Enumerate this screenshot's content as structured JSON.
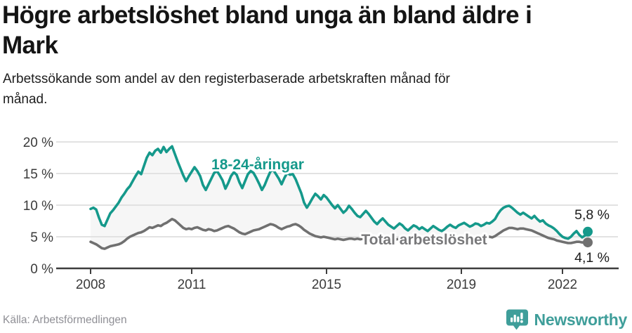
{
  "header": {
    "title_line1": "Högre arbetslöshet bland unga än bland äldre i",
    "title_line2": "Mark",
    "subtitle_line1": "Arbetssökande som andel av den registerbaserade arbetskraften månad för",
    "subtitle_line2": "månad."
  },
  "footer": {
    "source": "Källa: Arbetsförmedlingen",
    "brand": "Newsworthy",
    "brand_color": "#3f9e9a"
  },
  "chart_data": {
    "type": "line",
    "title": "Högre arbetslöshet bland unga än bland äldre i Mark",
    "subtitle": "Arbetssökande som andel av den registerbaserade arbetskraften månad för månad.",
    "source": "Källa: Arbetsförmedlingen",
    "unit": "%",
    "x_start": "2008-01",
    "x_step_months": 1,
    "x_end": "2022-10",
    "ylim": [
      0,
      20
    ],
    "grid": true,
    "legend_position": "inline-labels",
    "band_fill": "rgba(130,130,130,0.07)",
    "y_ticks": [
      {
        "v": 0,
        "label": "0 %"
      },
      {
        "v": 5,
        "label": "5 %"
      },
      {
        "v": 10,
        "label": "10 %"
      },
      {
        "v": 15,
        "label": "15 %"
      },
      {
        "v": 20,
        "label": "20 %"
      }
    ],
    "x_ticks": [
      {
        "year": 2008,
        "label": "2008"
      },
      {
        "year": 2011,
        "label": "2011"
      },
      {
        "year": 2015,
        "label": "2015"
      },
      {
        "year": 2019,
        "label": "2019"
      },
      {
        "year": 2022,
        "label": "2022"
      }
    ],
    "series": [
      {
        "id": "young",
        "name": "18-24-åringar",
        "color": "#15998b",
        "end_label": "5,8 %",
        "end_value": 5.8,
        "values": [
          9.4,
          9.6,
          9.3,
          8.0,
          6.9,
          6.7,
          7.7,
          8.7,
          9.2,
          9.8,
          10.4,
          11.2,
          11.8,
          12.5,
          13.0,
          13.8,
          14.6,
          15.3,
          14.9,
          16.2,
          17.5,
          18.3,
          17.9,
          18.6,
          18.9,
          18.3,
          19.2,
          18.4,
          18.9,
          19.3,
          18.1,
          16.9,
          15.8,
          14.7,
          13.8,
          14.6,
          15.3,
          16.0,
          15.4,
          14.6,
          13.2,
          12.4,
          13.3,
          14.2,
          15.1,
          15.4,
          14.7,
          13.9,
          12.6,
          13.5,
          14.6,
          15.2,
          14.8,
          13.6,
          12.7,
          13.8,
          14.9,
          15.4,
          15.1,
          14.3,
          13.4,
          12.4,
          13.2,
          14.3,
          15.3,
          15.6,
          14.9,
          14.2,
          13.3,
          14.3,
          15.1,
          14.8,
          14.9,
          14.1,
          13.0,
          11.9,
          10.4,
          9.6,
          10.3,
          11.1,
          11.8,
          11.4,
          10.9,
          11.6,
          11.2,
          10.6,
          10.0,
          9.5,
          10.0,
          9.4,
          8.8,
          9.2,
          9.9,
          9.4,
          8.8,
          8.3,
          8.1,
          8.6,
          9.1,
          8.6,
          8.0,
          7.4,
          7.0,
          7.5,
          7.9,
          7.4,
          6.9,
          6.6,
          6.3,
          6.7,
          7.1,
          6.8,
          6.3,
          6.0,
          6.4,
          6.8,
          6.6,
          6.2,
          6.5,
          6.2,
          5.9,
          6.3,
          6.7,
          6.4,
          6.1,
          5.9,
          6.2,
          6.6,
          6.9,
          6.6,
          6.4,
          6.8,
          7.0,
          7.2,
          6.9,
          6.6,
          6.8,
          7.1,
          7.0,
          6.7,
          6.9,
          7.2,
          7.1,
          7.4,
          7.8,
          8.6,
          9.2,
          9.6,
          9.8,
          9.9,
          9.6,
          9.2,
          8.8,
          8.5,
          8.8,
          8.5,
          8.2,
          7.9,
          8.3,
          7.8,
          7.4,
          7.6,
          7.1,
          6.8,
          6.6,
          6.3,
          5.9,
          5.4,
          5.0,
          4.8,
          4.7,
          5.0,
          5.5,
          5.9,
          5.3,
          4.9,
          5.2,
          5.8
        ]
      },
      {
        "id": "total",
        "name": "Total arbetslöshet",
        "color": "#707070",
        "label_color": "#78787a",
        "end_label": "4,1 %",
        "end_value": 4.1,
        "values": [
          4.2,
          4.0,
          3.8,
          3.5,
          3.2,
          3.1,
          3.3,
          3.5,
          3.6,
          3.7,
          3.8,
          4.0,
          4.3,
          4.7,
          5.0,
          5.2,
          5.4,
          5.6,
          5.7,
          5.9,
          6.2,
          6.5,
          6.4,
          6.6,
          6.8,
          6.7,
          7.0,
          7.2,
          7.5,
          7.8,
          7.6,
          7.2,
          6.8,
          6.4,
          6.2,
          6.3,
          6.2,
          6.4,
          6.5,
          6.3,
          6.1,
          6.0,
          6.2,
          6.1,
          5.9,
          6.0,
          6.2,
          6.4,
          6.6,
          6.7,
          6.5,
          6.3,
          6.0,
          5.7,
          5.5,
          5.4,
          5.6,
          5.8,
          6.0,
          6.1,
          6.2,
          6.4,
          6.6,
          6.8,
          7.0,
          6.9,
          6.7,
          6.4,
          6.2,
          6.4,
          6.6,
          6.7,
          6.9,
          7.0,
          6.8,
          6.5,
          6.1,
          5.8,
          5.5,
          5.3,
          5.1,
          5.0,
          4.9,
          5.0,
          4.9,
          4.8,
          4.7,
          4.6,
          4.7,
          4.6,
          4.5,
          4.6,
          4.7,
          4.7,
          4.6,
          4.7,
          4.6,
          4.7,
          4.8,
          4.7,
          4.6,
          4.5,
          4.5,
          4.6,
          4.7,
          4.6,
          4.5,
          4.6,
          4.5,
          4.6,
          4.7,
          4.6,
          4.5,
          4.4,
          4.5,
          4.6,
          4.7,
          4.6,
          4.5,
          4.6,
          4.5,
          4.6,
          4.7,
          4.6,
          4.5,
          4.4,
          4.5,
          4.6,
          4.7,
          4.6,
          4.5,
          4.7,
          4.6,
          4.7,
          4.6,
          4.5,
          4.6,
          4.7,
          4.8,
          4.7,
          4.8,
          4.9,
          5.0,
          4.9,
          5.1,
          5.4,
          5.7,
          6.0,
          6.2,
          6.4,
          6.4,
          6.3,
          6.2,
          6.3,
          6.3,
          6.2,
          6.1,
          6.0,
          5.8,
          5.6,
          5.4,
          5.2,
          5.0,
          4.8,
          4.7,
          4.6,
          4.4,
          4.3,
          4.2,
          4.1,
          4.0,
          4.0,
          4.1,
          4.2,
          4.2,
          4.1,
          4.1,
          4.1
        ]
      }
    ]
  }
}
